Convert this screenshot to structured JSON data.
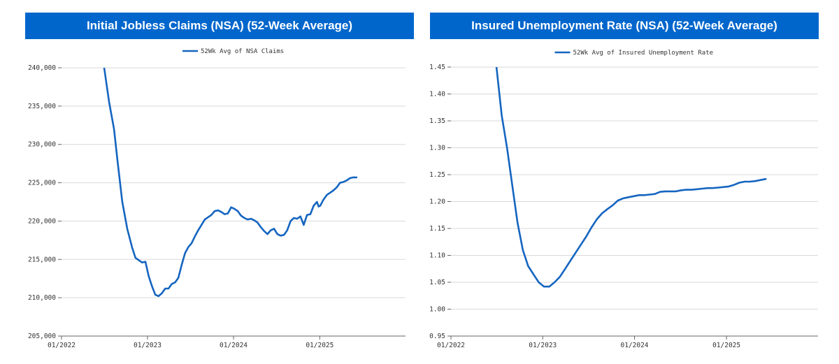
{
  "colors": {
    "banner": "#0066cc",
    "line": "#1565c0",
    "grid": "#d9d9d9",
    "axis": "#666666"
  },
  "chart_data": [
    {
      "type": "line",
      "title": "Initial Jobless Claims (NSA) (52-Week Average)",
      "legend_position": "top-center",
      "grid": true,
      "x_tick_labels": [
        "01/2022",
        "01/2023",
        "01/2024",
        "01/2025"
      ],
      "y_tick_labels": [
        "240,000",
        "235,000",
        "230,000",
        "225,000",
        "220,000",
        "215,000",
        "210,000",
        "205,000"
      ],
      "ylim": [
        205000,
        240000
      ],
      "xlim": [
        "2022-01-01",
        "2025-12-31"
      ],
      "series": [
        {
          "name": "52Wk Avg of NSA Claims",
          "x": [
            "2022-07-01",
            "2022-07-22",
            "2022-08-12",
            "2022-08-26",
            "2022-09-16",
            "2022-10-07",
            "2022-10-28",
            "2022-11-11",
            "2022-11-25",
            "2022-12-09",
            "2022-12-23",
            "2023-01-06",
            "2023-01-20",
            "2023-02-03",
            "2023-02-17",
            "2023-03-03",
            "2023-03-17",
            "2023-03-31",
            "2023-04-14",
            "2023-04-28",
            "2023-05-12",
            "2023-05-26",
            "2023-06-09",
            "2023-06-23",
            "2023-07-07",
            "2023-07-21",
            "2023-08-04",
            "2023-08-18",
            "2023-09-01",
            "2023-09-15",
            "2023-09-29",
            "2023-10-13",
            "2023-10-27",
            "2023-11-10",
            "2023-11-24",
            "2023-12-08",
            "2023-12-22",
            "2024-01-05",
            "2024-01-19",
            "2024-02-02",
            "2024-02-16",
            "2024-03-01",
            "2024-03-15",
            "2024-03-29",
            "2024-04-12",
            "2024-04-26",
            "2024-05-10",
            "2024-05-24",
            "2024-06-07",
            "2024-06-21",
            "2024-07-05",
            "2024-07-19",
            "2024-08-02",
            "2024-08-16",
            "2024-08-30",
            "2024-09-13",
            "2024-09-27",
            "2024-10-11",
            "2024-10-25",
            "2024-11-08",
            "2024-11-22",
            "2024-12-06",
            "2024-12-20",
            "2024-12-27",
            "2025-01-03",
            "2025-01-17",
            "2025-01-31",
            "2025-02-14",
            "2025-02-28",
            "2025-03-14",
            "2025-03-28",
            "2025-04-11",
            "2025-04-25",
            "2025-05-09",
            "2025-05-23",
            "2025-06-06"
          ],
          "values": [
            240000,
            235500,
            232000,
            228000,
            222500,
            219000,
            216500,
            215200,
            214900,
            214600,
            214700,
            212800,
            211500,
            210400,
            210200,
            210600,
            211200,
            211200,
            211800,
            212000,
            212600,
            214300,
            215800,
            216600,
            217100,
            218000,
            218800,
            219500,
            220200,
            220500,
            220800,
            221300,
            221400,
            221200,
            220900,
            221000,
            221800,
            221600,
            221300,
            220700,
            220400,
            220200,
            220300,
            220100,
            219800,
            219200,
            218700,
            218300,
            218800,
            219000,
            218300,
            218100,
            218200,
            218800,
            220000,
            220400,
            220300,
            220600,
            219500,
            220800,
            220900,
            222000,
            222500,
            221900,
            222000,
            222800,
            223400,
            223700,
            224000,
            224400,
            225000,
            225100,
            225300,
            225600,
            225700,
            225700
          ]
        }
      ]
    },
    {
      "type": "line",
      "title": "Insured Unemployment Rate (NSA) (52-Week Average)",
      "legend_position": "top-center",
      "grid": true,
      "x_tick_labels": [
        "01/2022",
        "01/2023",
        "01/2024",
        "01/2025"
      ],
      "y_tick_labels": [
        "1.45",
        "1.40",
        "1.35",
        "1.30",
        "1.25",
        "1.20",
        "1.15",
        "1.10",
        "1.05",
        "1.00",
        "0.95"
      ],
      "ylim": [
        0.95,
        1.45
      ],
      "xlim": [
        "2022-01-01",
        "2025-12-31"
      ],
      "series": [
        {
          "name": "52Wk Avg of Insured Unemployment Rate",
          "x": [
            "2022-07-01",
            "2022-07-22",
            "2022-08-12",
            "2022-09-02",
            "2022-09-23",
            "2022-10-14",
            "2022-11-04",
            "2022-11-25",
            "2022-12-16",
            "2023-01-06",
            "2023-01-27",
            "2023-02-17",
            "2023-03-10",
            "2023-03-31",
            "2023-04-21",
            "2023-05-12",
            "2023-06-02",
            "2023-06-23",
            "2023-07-14",
            "2023-08-04",
            "2023-08-25",
            "2023-09-15",
            "2023-10-06",
            "2023-10-27",
            "2023-11-17",
            "2023-12-08",
            "2023-12-29",
            "2024-01-19",
            "2024-02-09",
            "2024-03-01",
            "2024-03-22",
            "2024-04-12",
            "2024-05-03",
            "2024-05-24",
            "2024-06-14",
            "2024-07-05",
            "2024-07-26",
            "2024-08-16",
            "2024-09-06",
            "2024-09-27",
            "2024-10-18",
            "2024-11-08",
            "2024-11-29",
            "2024-12-20",
            "2025-01-10",
            "2025-01-31",
            "2025-02-21",
            "2025-03-14",
            "2025-04-04",
            "2025-04-25",
            "2025-05-16",
            "2025-06-06"
          ],
          "values": [
            1.45,
            1.36,
            1.3,
            1.23,
            1.16,
            1.11,
            1.08,
            1.065,
            1.05,
            1.042,
            1.042,
            1.05,
            1.06,
            1.075,
            1.09,
            1.105,
            1.12,
            1.135,
            1.152,
            1.167,
            1.178,
            1.186,
            1.193,
            1.202,
            1.206,
            1.208,
            1.21,
            1.212,
            1.212,
            1.213,
            1.214,
            1.218,
            1.219,
            1.219,
            1.219,
            1.221,
            1.222,
            1.222,
            1.223,
            1.224,
            1.225,
            1.225,
            1.226,
            1.227,
            1.228,
            1.231,
            1.235,
            1.237,
            1.237,
            1.238,
            1.24,
            1.242
          ]
        }
      ]
    }
  ]
}
